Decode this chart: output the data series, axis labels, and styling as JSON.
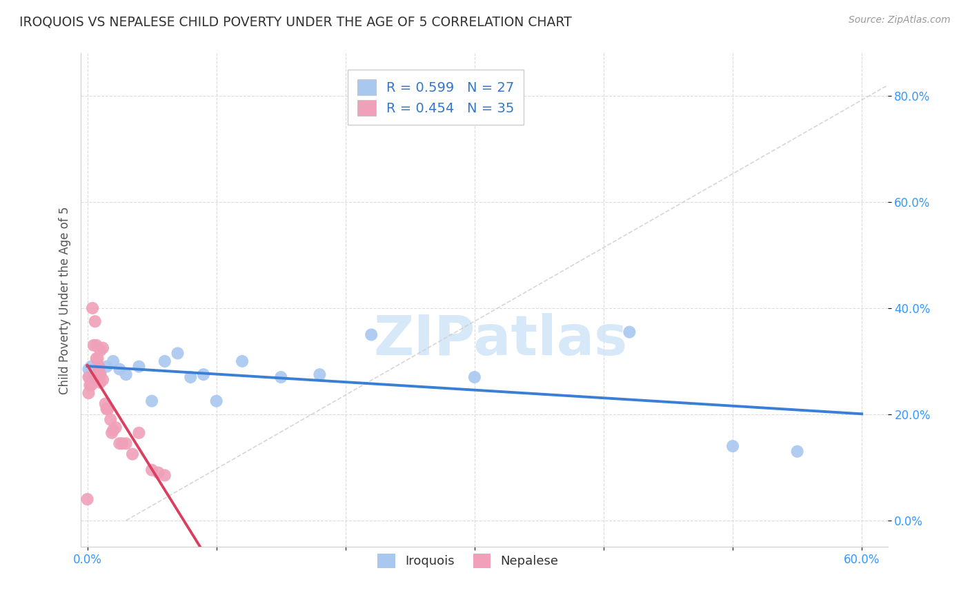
{
  "title": "IROQUOIS VS NEPALESE CHILD POVERTY UNDER THE AGE OF 5 CORRELATION CHART",
  "source": "Source: ZipAtlas.com",
  "ylabel": "Child Poverty Under the Age of 5",
  "r_iroquois": 0.599,
  "n_iroquois": 27,
  "r_nepalese": 0.454,
  "n_nepalese": 35,
  "color_iroquois": "#a8c8f0",
  "color_nepalese": "#f0a0b8",
  "trendline_iroquois": "#3a7fd5",
  "trendline_nepalese": "#d94060",
  "diagonal_color": "#cccccc",
  "iroquois_x": [
    0.001,
    0.002,
    0.003,
    0.005,
    0.007,
    0.008,
    0.009,
    0.01,
    0.015,
    0.02,
    0.025,
    0.03,
    0.04,
    0.05,
    0.06,
    0.07,
    0.08,
    0.09,
    0.1,
    0.12,
    0.15,
    0.18,
    0.22,
    0.3,
    0.42,
    0.5,
    0.55
  ],
  "iroquois_y": [
    0.285,
    0.27,
    0.29,
    0.285,
    0.275,
    0.29,
    0.28,
    0.275,
    0.29,
    0.3,
    0.285,
    0.275,
    0.29,
    0.225,
    0.3,
    0.315,
    0.27,
    0.275,
    0.225,
    0.3,
    0.27,
    0.275,
    0.35,
    0.27,
    0.355,
    0.14,
    0.13
  ],
  "nepalese_x": [
    0.001,
    0.001,
    0.002,
    0.003,
    0.003,
    0.004,
    0.005,
    0.006,
    0.007,
    0.007,
    0.007,
    0.008,
    0.009,
    0.009,
    0.01,
    0.01,
    0.01,
    0.012,
    0.012,
    0.014,
    0.015,
    0.016,
    0.018,
    0.019,
    0.02,
    0.022,
    0.025,
    0.027,
    0.03,
    0.035,
    0.04,
    0.05,
    0.055,
    0.06,
    0.0
  ],
  "nepalese_y": [
    0.27,
    0.24,
    0.255,
    0.265,
    0.255,
    0.4,
    0.33,
    0.375,
    0.33,
    0.305,
    0.27,
    0.305,
    0.29,
    0.285,
    0.275,
    0.26,
    0.32,
    0.265,
    0.325,
    0.22,
    0.21,
    0.21,
    0.19,
    0.165,
    0.17,
    0.175,
    0.145,
    0.145,
    0.145,
    0.125,
    0.165,
    0.095,
    0.09,
    0.085,
    0.04
  ],
  "xlim": [
    -0.005,
    0.62
  ],
  "ylim": [
    -0.05,
    0.88
  ],
  "yticks": [
    0.0,
    0.2,
    0.4,
    0.6,
    0.8
  ],
  "ytick_labels": [
    "0.0%",
    "20.0%",
    "40.0%",
    "60.0%",
    "80.0%"
  ],
  "xticks": [
    0.0,
    0.1,
    0.2,
    0.3,
    0.4,
    0.5,
    0.6
  ],
  "xtick_labels": [
    "0.0%",
    "",
    "",
    "",
    "",
    "",
    "60.0%"
  ],
  "background_color": "#ffffff",
  "grid_color": "#d8d8d8",
  "watermark_text": "ZIPatlas",
  "watermark_color": "#d0e4f8"
}
